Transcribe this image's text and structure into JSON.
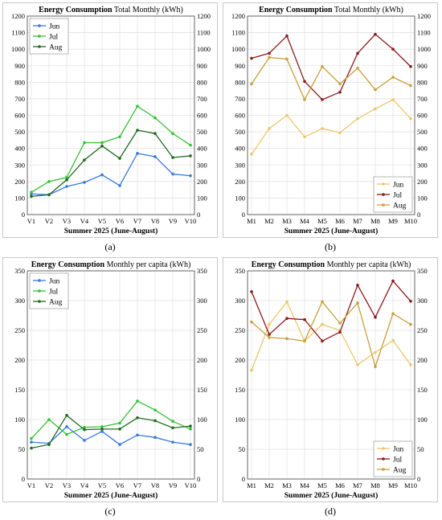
{
  "colors": {
    "jun_a": "#3a78e0",
    "jul_a": "#33c233",
    "aug_a": "#1f6b1f",
    "jun_b": "#ecc76a",
    "jul_b": "#8b1a1a",
    "aug_b": "#c8a03c"
  },
  "chart_data": [
    {
      "type": "line",
      "panel": "a",
      "caption": "(a)",
      "title_bold": "Energy Consumption",
      "title_rest": "Total Monthly (kWh)",
      "xlabel": "Summer 2025 (June-August)",
      "ylabel": "",
      "categories": [
        "V1",
        "V2",
        "V3",
        "V4",
        "V5",
        "V6",
        "V7",
        "V8",
        "V9",
        "V10"
      ],
      "ylim": [
        0,
        1200
      ],
      "yticks": [
        0,
        100,
        200,
        300,
        400,
        500,
        600,
        700,
        800,
        900,
        1000,
        1100,
        1200
      ],
      "legend": "top-left",
      "series": [
        {
          "name": "Jun",
          "color": "#3a78e0",
          "values": [
            125,
            120,
            170,
            195,
            240,
            175,
            370,
            350,
            245,
            235
          ]
        },
        {
          "name": "Jul",
          "color": "#33c233",
          "values": [
            135,
            200,
            225,
            435,
            435,
            470,
            655,
            585,
            490,
            420
          ]
        },
        {
          "name": "Aug",
          "color": "#1f6b1f",
          "values": [
            110,
            120,
            210,
            330,
            415,
            340,
            510,
            490,
            345,
            355
          ]
        }
      ]
    },
    {
      "type": "line",
      "panel": "b",
      "caption": "(b)",
      "title_bold": "Energy Consumption",
      "title_rest": "Total Monthly (kWh)",
      "xlabel": "Summer 2025 (June-August)",
      "ylabel": "",
      "categories": [
        "M1",
        "M2",
        "M3",
        "M4",
        "M5",
        "M6",
        "M7",
        "M8",
        "M9",
        "M10"
      ],
      "ylim": [
        0,
        1200
      ],
      "yticks": [
        0,
        100,
        200,
        300,
        400,
        500,
        600,
        700,
        800,
        900,
        1000,
        1100,
        1200
      ],
      "legend": "bottom-right",
      "series": [
        {
          "name": "Jun",
          "color": "#ecc76a",
          "values": [
            365,
            520,
            600,
            470,
            520,
            495,
            580,
            640,
            695,
            580
          ]
        },
        {
          "name": "Jul",
          "color": "#8b1a1a",
          "values": [
            945,
            975,
            1080,
            805,
            695,
            740,
            975,
            1090,
            1000,
            895
          ]
        },
        {
          "name": "Aug",
          "color": "#c8a03c",
          "values": [
            790,
            950,
            940,
            695,
            895,
            790,
            885,
            755,
            830,
            780
          ]
        }
      ]
    },
    {
      "type": "line",
      "panel": "c",
      "caption": "(c)",
      "title_bold": "Energy Consumption",
      "title_rest": "Monthly per capita  (kWh)",
      "xlabel": "Summer 2025 (June-August)",
      "ylabel": "",
      "categories": [
        "V1",
        "V2",
        "V3",
        "V4",
        "V5",
        "V6",
        "V7",
        "V8",
        "V9",
        "V10"
      ],
      "ylim": [
        0,
        350
      ],
      "yticks": [
        0,
        50,
        100,
        150,
        200,
        250,
        300,
        350
      ],
      "legend": "top-left",
      "series": [
        {
          "name": "Jun",
          "color": "#3a78e0",
          "values": [
            62,
            60,
            88,
            65,
            80,
            58,
            74,
            70,
            62,
            58
          ]
        },
        {
          "name": "Jul",
          "color": "#33c233",
          "values": [
            68,
            100,
            75,
            87,
            88,
            94,
            131,
            116,
            97,
            84
          ]
        },
        {
          "name": "Aug",
          "color": "#1f6b1f",
          "values": [
            52,
            58,
            107,
            83,
            84,
            84,
            103,
            98,
            86,
            89
          ]
        }
      ]
    },
    {
      "type": "line",
      "panel": "d",
      "caption": "(d)",
      "title_bold": "Energy Consumption",
      "title_rest": "Monthly per capita  (kWh)",
      "xlabel": "Summer 2025 (June-August)",
      "ylabel": "",
      "categories": [
        "M1",
        "M2",
        "M3",
        "M4",
        "M5",
        "M6",
        "M7",
        "M8",
        "M9",
        "M10"
      ],
      "ylim": [
        0,
        350
      ],
      "yticks": [
        0,
        50,
        100,
        150,
        200,
        250,
        300,
        350
      ],
      "legend": "bottom-right",
      "series": [
        {
          "name": "Jun",
          "color": "#ecc76a",
          "values": [
            183,
            260,
            298,
            232,
            260,
            250,
            192,
            213,
            233,
            192
          ]
        },
        {
          "name": "Jul",
          "color": "#8b1a1a",
          "values": [
            315,
            243,
            270,
            268,
            232,
            247,
            326,
            272,
            333,
            299
          ]
        },
        {
          "name": "Aug",
          "color": "#c8a03c",
          "values": [
            264,
            238,
            236,
            232,
            298,
            262,
            296,
            189,
            278,
            260
          ]
        }
      ]
    }
  ]
}
